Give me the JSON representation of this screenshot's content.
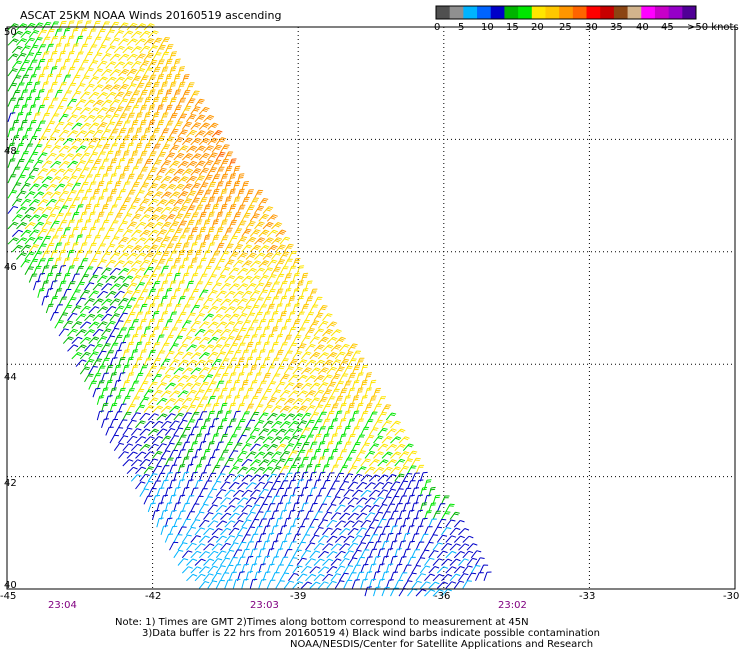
{
  "title": "ASCAT 25KM NOAA Winds 20160519 ascending",
  "colorbar": {
    "bins": [
      {
        "color": "#505050"
      },
      {
        "color": "#909090"
      },
      {
        "color": "#00b4ff"
      },
      {
        "color": "#0064ff"
      },
      {
        "color": "#0000c8"
      },
      {
        "color": "#00b400"
      },
      {
        "color": "#00e600"
      },
      {
        "color": "#ffe600"
      },
      {
        "color": "#ffc800"
      },
      {
        "color": "#ff9600"
      },
      {
        "color": "#ff6400"
      },
      {
        "color": "#ff0000"
      },
      {
        "color": "#c80000"
      },
      {
        "color": "#8b4513"
      },
      {
        "color": "#d2b48c"
      },
      {
        "color": "#ff00ff"
      },
      {
        "color": "#c800c8"
      },
      {
        "color": "#9600c8"
      },
      {
        "color": "#500096"
      }
    ],
    "labels": [
      "0",
      "5",
      "10",
      "15",
      "20",
      "25",
      "30",
      "35",
      "40",
      "45",
      ">50 knots"
    ]
  },
  "axes": {
    "lat_labels": [
      "50",
      "48",
      "46",
      "44",
      "42",
      "40"
    ],
    "lon_labels": [
      "-45",
      "-42",
      "-39",
      "-36",
      "-33",
      "-30"
    ],
    "lat_range": [
      40,
      50
    ],
    "lon_range": [
      -45,
      -30
    ],
    "grid": true
  },
  "times": [
    "23:04",
    "23:03",
    "23:02"
  ],
  "notes": [
    "Note: 1) Times are GMT 2)Times along bottom correspond to measurement at 45N",
    "3)Data buffer is 22 hrs from 20160519 4) Black wind barbs indicate possible contamination",
    "NOAA/NESDIS/Center for Satellite Applications and Research"
  ],
  "swath": {
    "wind_speed_regions_knots": [
      {
        "area": "north-center",
        "speed": 32
      },
      {
        "area": "north-west",
        "speed": 22
      },
      {
        "area": "west-edge",
        "speed": 15
      },
      {
        "area": "center",
        "speed": 23
      },
      {
        "area": "south-east",
        "speed": 12
      },
      {
        "area": "south",
        "speed": 9
      }
    ]
  }
}
